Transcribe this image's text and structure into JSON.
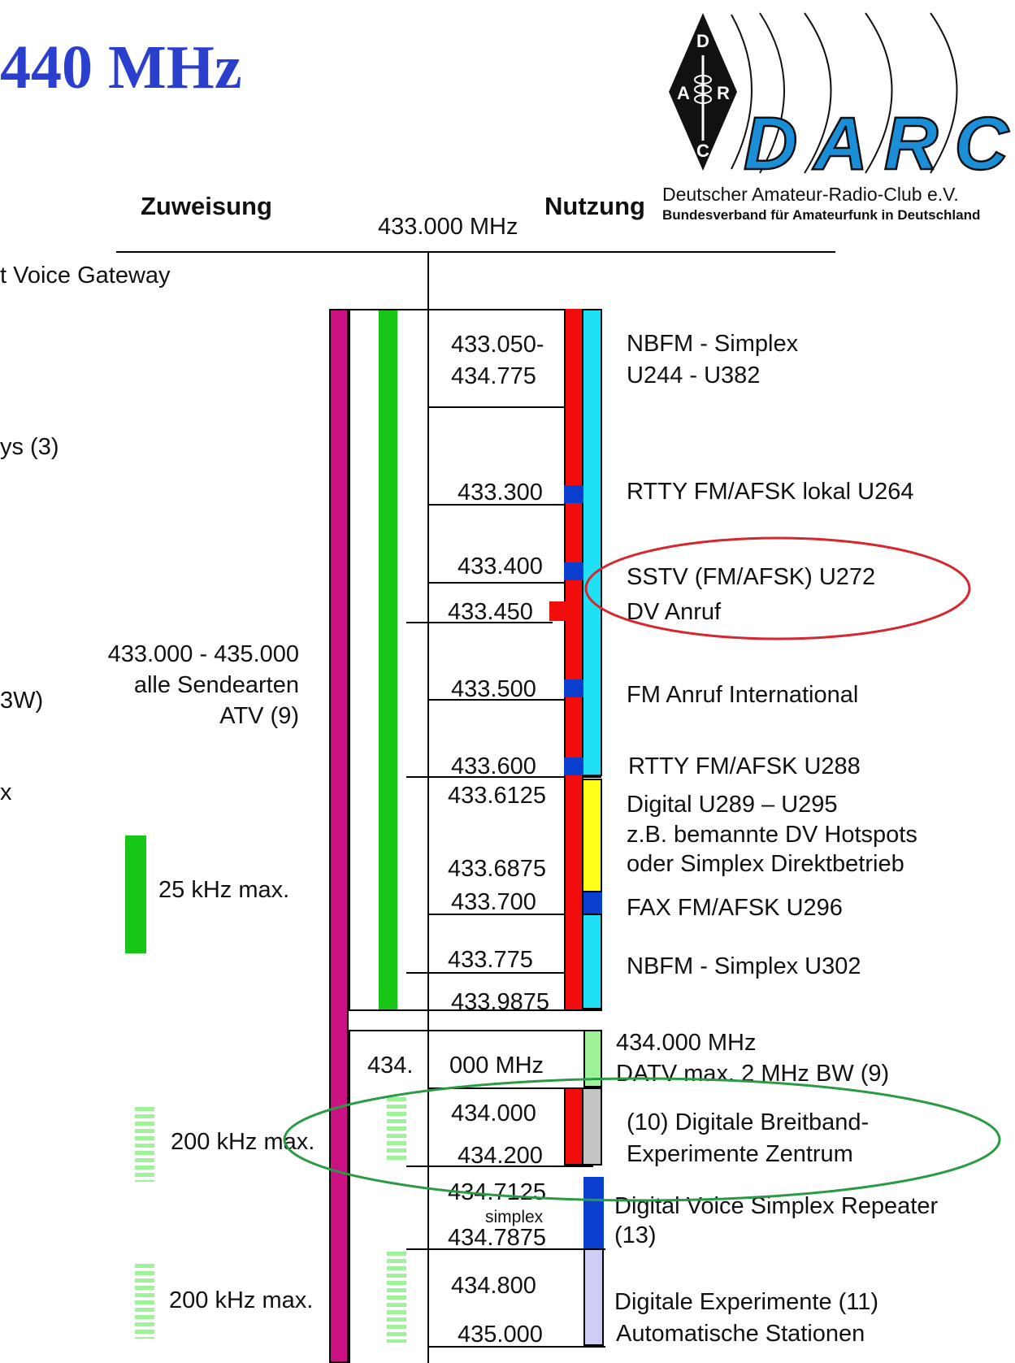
{
  "page": {
    "title": "440 MHz",
    "col_zuweisung": "Zuweisung",
    "col_nutzung": "Nutzung",
    "top_freq": "433.000 MHz"
  },
  "logo": {
    "diamond_letters": [
      "D",
      "A",
      "R",
      "C"
    ],
    "wordmark": "DARC",
    "line1": "Deutscher Amateur-Radio-Club e.V.",
    "line2": "Bundesverband für Amateurfunk in Deutschland"
  },
  "left_fragments": {
    "f1": "t Voice Gateway",
    "f2": "ys (3)",
    "f3": "3W)",
    "f4": "x"
  },
  "allocation": {
    "line1": "433.000 - 435.000",
    "line2": "alle Sendearten",
    "line3": "ATV (9)"
  },
  "bandwidth_legend": {
    "bw25": "25 kHz max.",
    "bw200a": "200 kHz max.",
    "bw200b": "200 kHz max."
  },
  "frequencies": {
    "f433050": "433.050-",
    "f434775": "434.775",
    "f433300": "433.300",
    "f433400": "433.400",
    "f433450": "433.450",
    "f433500": "433.500",
    "f433600": "433.600",
    "f4336125": "433.6125",
    "f4336875": "433.6875",
    "f433700": "433.700",
    "f433775": "433.775",
    "f4339875": "433.9875",
    "mid_a": "434.",
    "mid_b": "000 MHz",
    "f434000": "434.000",
    "f434200": "434.200",
    "f4347125": "434.7125",
    "simplex": "simplex",
    "f4347875": "434.7875",
    "f434800": "434.800",
    "f435000": "435.000"
  },
  "usage": {
    "u1a": "NBFM - Simplex",
    "u1b": "U244 - U382",
    "u2": "RTTY FM/AFSK lokal U264",
    "u3a": "SSTV (FM/AFSK) U272",
    "u3b": "DV Anruf",
    "u4": "FM Anruf International",
    "u5": "RTTY FM/AFSK U288",
    "u6a": "Digital U289 – U295",
    "u6b": "z.B. bemannte DV Hotspots",
    "u6c": "oder Simplex Direktbetrieb",
    "u7": "FAX FM/AFSK U296",
    "u8": "NBFM - Simplex  U302",
    "u9a": "434.000 MHz",
    "u9b": "DATV max. 2 MHz BW (9)",
    "u10a": "(10) Digitale Breitband-",
    "u10b": "Experimente Zentrum",
    "u11a": "Digital Voice Simplex Repeater",
    "u11b": "(13)",
    "u12a": "Digitale Experimente (11)",
    "u12b": "Automatische Stationen"
  },
  "colors": {
    "title_blue": "#2b3fcf",
    "magenta": "#cc1182",
    "green": "#17c617",
    "light_green": "#9ff29a",
    "red": "#f20d0d",
    "cyan": "#1fe0f5",
    "blue": "#0a3fd0",
    "yellow": "#ffff1a",
    "gray": "#c4c4c4",
    "lavender": "#cfcdf5",
    "highlight_red": "#d8262e",
    "highlight_green": "#2a9a45",
    "logo_blue": "#1a8fd8"
  }
}
